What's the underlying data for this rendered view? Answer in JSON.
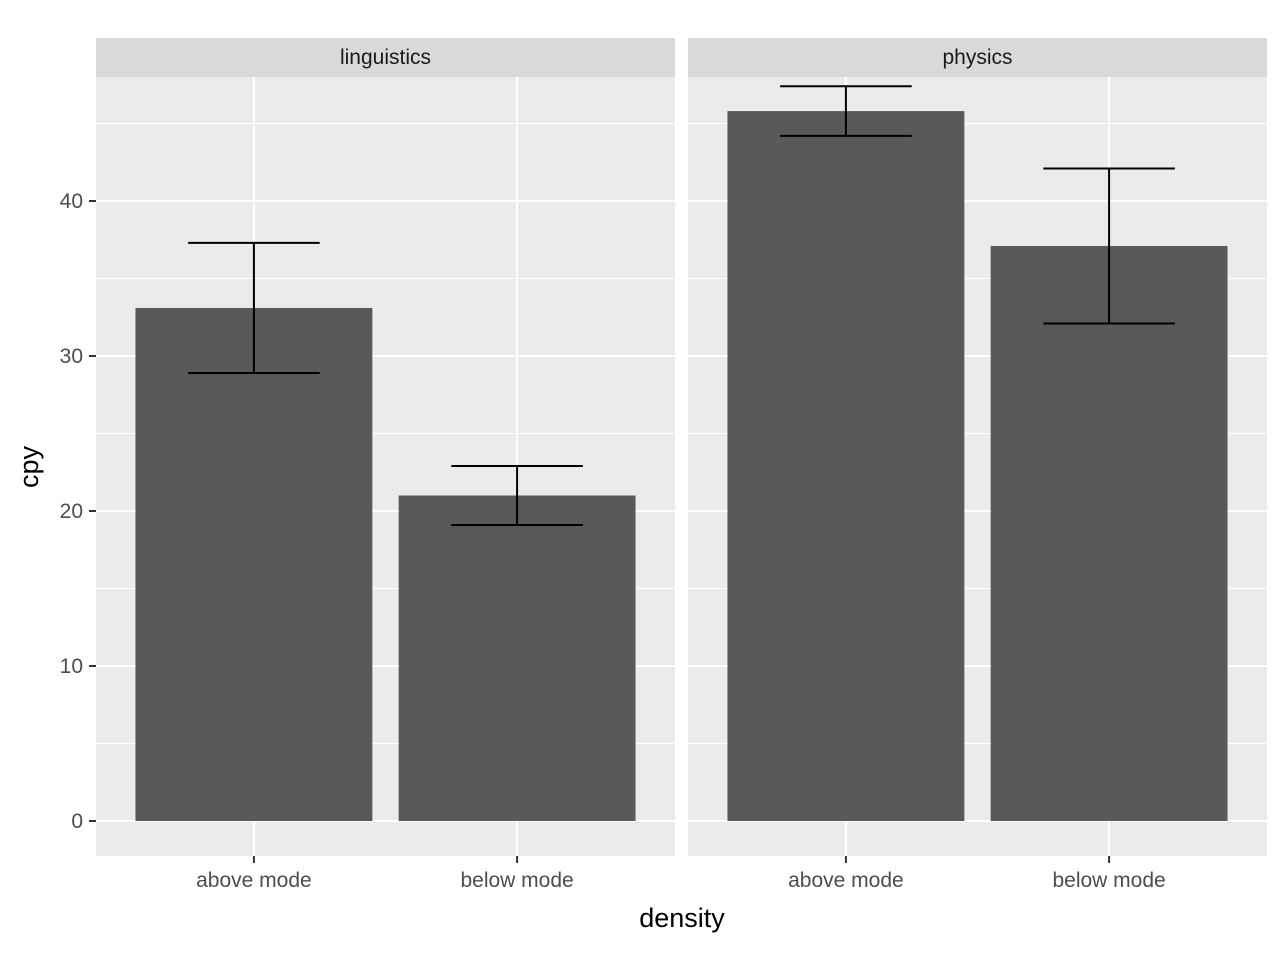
{
  "chart_data": {
    "type": "bar",
    "xlabel": "density",
    "ylabel": "cpy",
    "ylim": [
      0,
      50
    ],
    "yticks": [
      0,
      10,
      20,
      30,
      40
    ],
    "categories": [
      "above mode",
      "below mode"
    ],
    "grid": true,
    "facets": [
      {
        "label": "linguistics",
        "values": [
          33.1,
          21.0
        ],
        "error_low": [
          28.9,
          19.1
        ],
        "error_high": [
          37.3,
          22.9
        ]
      },
      {
        "label": "physics",
        "values": [
          45.8,
          37.1
        ],
        "error_low": [
          44.2,
          32.1
        ],
        "error_high": [
          47.4,
          42.1
        ]
      }
    ],
    "colors": {
      "bar": "#595959",
      "panel": "#ebebeb",
      "strip": "#d9d9d9",
      "grid": "#ffffff",
      "errorbar": "#000000"
    }
  }
}
